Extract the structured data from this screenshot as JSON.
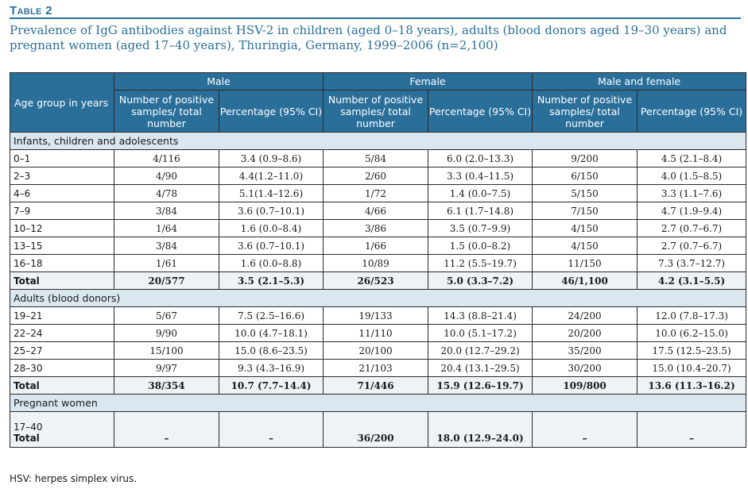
{
  "table_label": "Table 2",
  "caption": "Prevalence of IgG antibodies against HSV-2 in children (aged 0–18 years), adults (blood donors aged 19–30 years) and pregnant women (aged 17–40 years), Thuringia, Germany, 1999–2006 (n=2,100)",
  "header": {
    "age_group": "Age group in years",
    "groups": [
      "Male",
      "Female",
      "Male and female"
    ],
    "col_samples": "Number of positive samples/ total number",
    "col_percentage": "Percentage (95% CI)"
  },
  "sections": [
    {
      "title": "Infants, children and adolescents",
      "rows": [
        {
          "age": "0–1",
          "cells": [
            "4/116",
            "3.4 (0.9–8.6)",
            "5/84",
            "6.0 (2.0–13.3)",
            "9/200",
            "4.5 (2.1–8.4)"
          ]
        },
        {
          "age": "2–3",
          "cells": [
            "4/90",
            "4.4(1.2–11.0)",
            "2/60",
            "3.3 (0.4–11.5)",
            "6/150",
            "4.0 (1.5–8.5)"
          ]
        },
        {
          "age": "4–6",
          "cells": [
            "4/78",
            "5.1(1.4–12.6)",
            "1/72",
            "1.4 (0.0–7.5)",
            "5/150",
            "3.3 (1.1–7.6)"
          ]
        },
        {
          "age": "7–9",
          "cells": [
            "3/84",
            "3.6 (0.7–10.1)",
            "4/66",
            "6.1 (1.7–14.8)",
            "7/150",
            "4.7 (1.9–9.4)"
          ]
        },
        {
          "age": "10–12",
          "cells": [
            "1/64",
            "1.6 (0.0–8.4)",
            "3/86",
            "3.5 (0.7–9.9)",
            "4/150",
            "2.7 (0.7–6.7)"
          ]
        },
        {
          "age": "13–15",
          "cells": [
            "3/84",
            "3.6 (0.7–10.1)",
            "1/66",
            "1.5 (0.0–8.2)",
            "4/150",
            "2.7 (0.7–6.7)"
          ]
        },
        {
          "age": "16–18",
          "cells": [
            "1/61",
            "1.6 (0.0–8.8)",
            "10/89",
            "11.2 (5.5–19.7)",
            "11/150",
            "7.3 (3.7–12.7)"
          ]
        }
      ],
      "total": {
        "label": "Total",
        "cells": [
          "20/577",
          "3.5 (2.1–5.3)",
          "26/523",
          "5.0 (3.3–7.2)",
          "46/1,100",
          "4.2 (3.1–5.5)"
        ]
      }
    },
    {
      "title": "Adults (blood donors)",
      "rows": [
        {
          "age": "19–21",
          "cells": [
            "5/67",
            "7.5 (2.5–16.6)",
            "19/133",
            "14.3 (8.8–21.4)",
            "24/200",
            "12.0 (7.8–17.3)"
          ]
        },
        {
          "age": "22–24",
          "cells": [
            "9/90",
            "10.0 (4.7–18.1)",
            "11/110",
            "10.0 (5.1–17.2)",
            "20/200",
            "10.0 (6.2–15.0)"
          ]
        },
        {
          "age": "25–27",
          "cells": [
            "15/100",
            "15.0 (8.6–23.5)",
            "20/100",
            "20.0 (12.7–29.2)",
            "35/200",
            "17.5 (12.5–23.5)"
          ]
        },
        {
          "age": "28–30",
          "cells": [
            "9/97",
            "9.3 (4.3–16.9)",
            "21/103",
            "20.4 (13.1–29.5)",
            "30/200",
            "15.0 (10.4–20.7)"
          ]
        }
      ],
      "total": {
        "label": "Total",
        "cells": [
          "38/354",
          "10.7 (7.7–14.4)",
          "71/446",
          "15.9 (12.6–19.7)",
          "109/800",
          "13.6 (11.3–16.2)"
        ]
      }
    }
  ],
  "pregnant": {
    "title": "Pregnant women",
    "age": "17–40",
    "total_label": "Total",
    "cells": [
      "–",
      "–",
      "36/200",
      "18.0 (12.9–24.0)",
      "–",
      "–"
    ]
  },
  "footnote": "HSV: herpes simplex virus.",
  "colors": {
    "accent": "#2a6f9a",
    "section_bg": "#dbe7ef"
  }
}
